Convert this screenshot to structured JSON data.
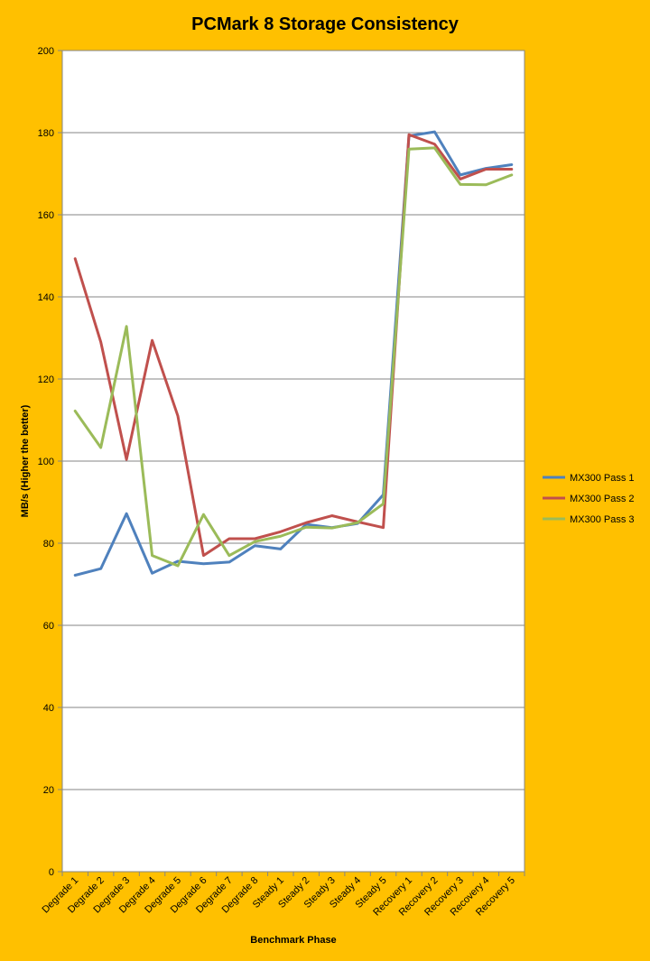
{
  "chart_data": {
    "type": "line",
    "title": "PCMark 8 Storage Consistency",
    "xlabel": "Benchmark Phase",
    "ylabel": "MB/s (Higher the better)",
    "ylim": [
      0,
      200
    ],
    "yticks": [
      0,
      20,
      40,
      60,
      80,
      100,
      120,
      140,
      160,
      180,
      200
    ],
    "grid": true,
    "legend_position": "right",
    "categories": [
      "Degrade 1",
      "Degrade 2",
      "Degrade 3",
      "Degrade 4",
      "Degrade 5",
      "Degrade 6",
      "Degrade 7",
      "Degrade 8",
      "Steady 1",
      "Steady 2",
      "Steady 3",
      "Steady 4",
      "Steady 5",
      "Recovery 1",
      "Recovery 2",
      "Recovery 3",
      "Recovery 4",
      "Recovery 5"
    ],
    "series": [
      {
        "name": "MX300 Pass 1",
        "color": "#4F81BD",
        "values": [
          72.2,
          73.8,
          87.2,
          72.7,
          75.6,
          75.0,
          75.4,
          79.4,
          78.6,
          84.6,
          83.8,
          84.8,
          91.8,
          179.2,
          180.2,
          169.7,
          171.3,
          172.2
        ]
      },
      {
        "name": "MX300 Pass 2",
        "color": "#C0504D",
        "values": [
          149.3,
          129.0,
          100.4,
          129.4,
          111.0,
          77.0,
          81.1,
          81.1,
          82.8,
          85.0,
          86.7,
          85.2,
          83.8,
          179.5,
          177.2,
          168.7,
          171.1,
          171.1
        ]
      },
      {
        "name": "MX300 Pass 3",
        "color": "#9BBB59",
        "values": [
          112.2,
          103.3,
          132.8,
          77.0,
          74.5,
          87.0,
          77.0,
          80.4,
          81.7,
          83.9,
          83.7,
          85.0,
          89.6,
          176.0,
          176.3,
          167.4,
          167.3,
          169.7
        ]
      }
    ]
  }
}
